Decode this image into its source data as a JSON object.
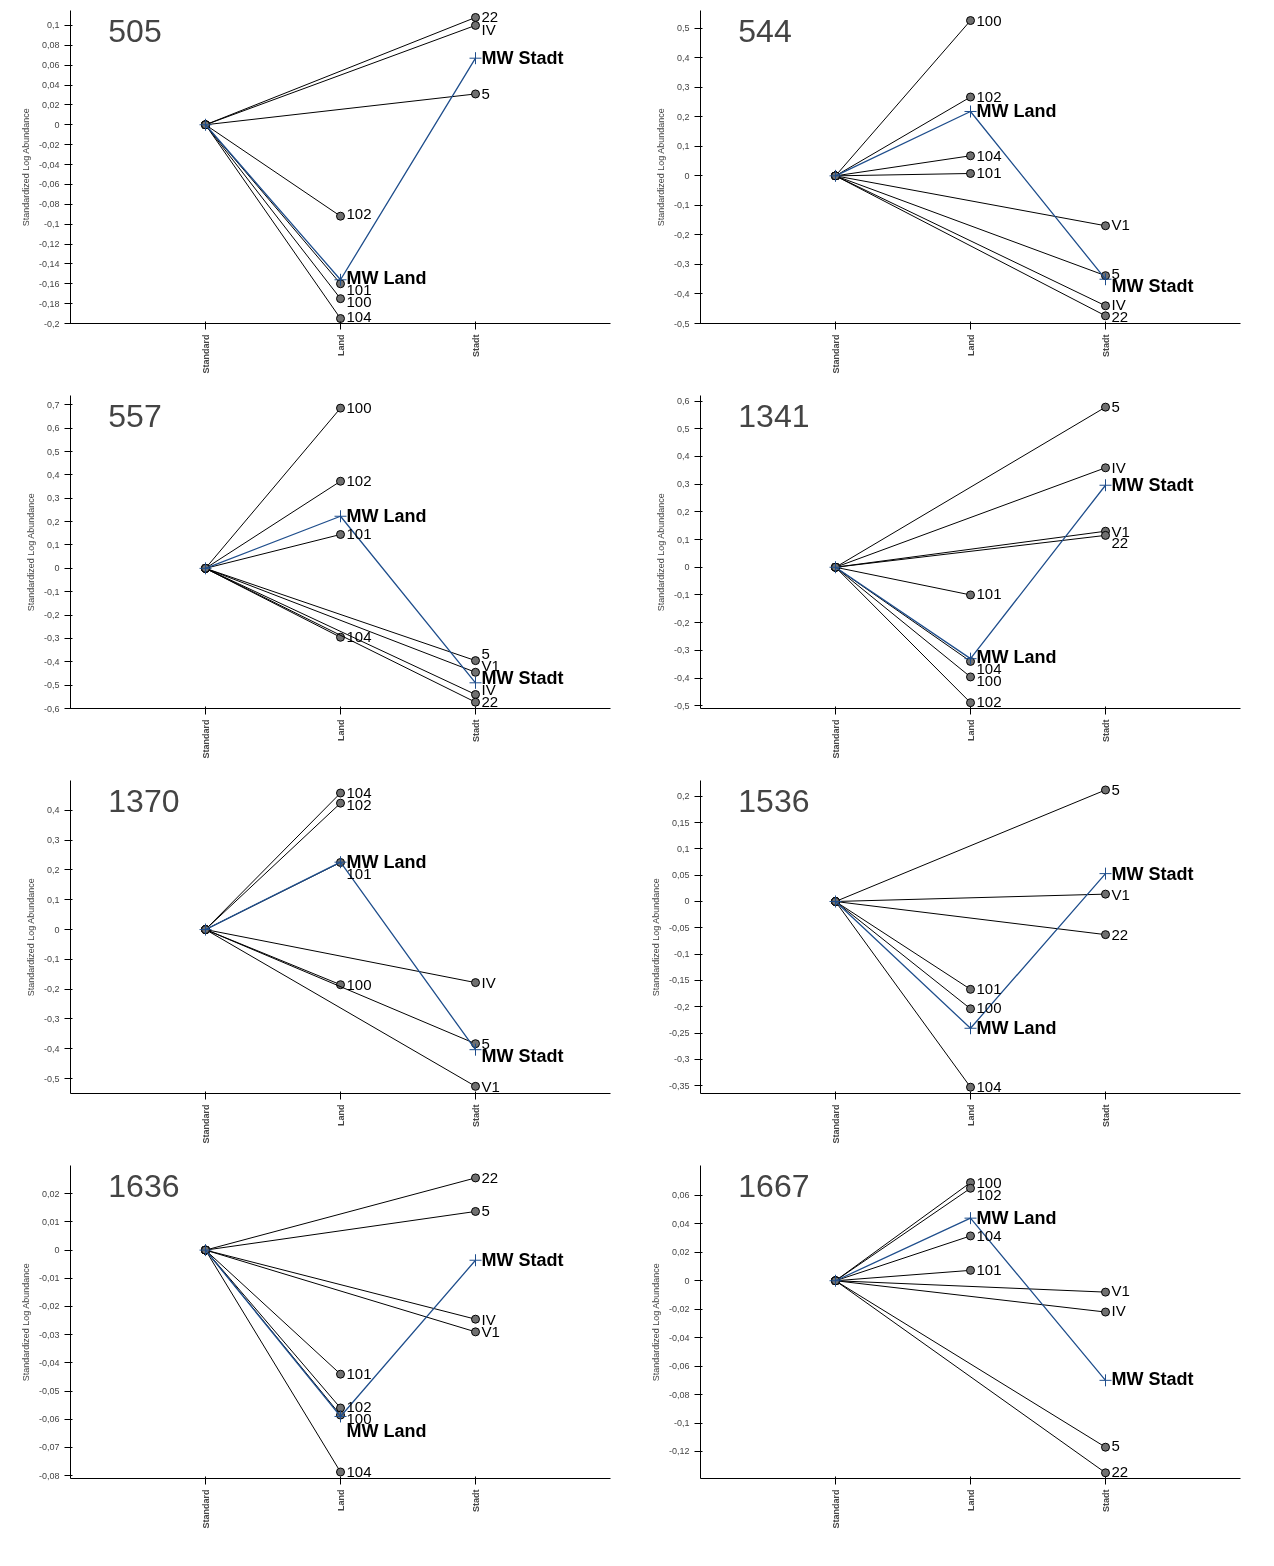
{
  "chart_data": [
    {
      "type": "line",
      "title": "505",
      "ylabel": "Standardized Log Abundance",
      "categories": [
        "Standard",
        "Land",
        "Stadt"
      ],
      "ylim": [
        -0.2,
        0.115
      ],
      "yticks": [
        {
          "value": -0.2,
          "label": "-0,2"
        },
        {
          "value": -0.18,
          "label": "-0,18"
        },
        {
          "value": -0.16,
          "label": "-0,16"
        },
        {
          "value": -0.14,
          "label": "-0,14"
        },
        {
          "value": -0.12,
          "label": "-0,12"
        },
        {
          "value": -0.1,
          "label": "-0,1"
        },
        {
          "value": -0.08,
          "label": "-0,08"
        },
        {
          "value": -0.06,
          "label": "-0,06"
        },
        {
          "value": -0.04,
          "label": "-0,04"
        },
        {
          "value": -0.02,
          "label": "-0,02"
        },
        {
          "value": 0,
          "label": "0"
        },
        {
          "value": 0.02,
          "label": "0,02"
        },
        {
          "value": 0.04,
          "label": "0,04"
        },
        {
          "value": 0.06,
          "label": "0,06"
        },
        {
          "value": 0.08,
          "label": "0,08"
        },
        {
          "value": 0.1,
          "label": "0,1"
        }
      ],
      "series": [
        {
          "name": "22",
          "color": "#000000",
          "marker": "circle",
          "values": [
            0,
            null,
            0.108
          ]
        },
        {
          "name": "IV",
          "color": "#000000",
          "marker": "circle",
          "values": [
            0,
            null,
            0.1
          ]
        },
        {
          "name": "5",
          "color": "#000000",
          "marker": "circle",
          "values": [
            0,
            null,
            0.031
          ]
        },
        {
          "name": "102",
          "color": "#000000",
          "marker": "circle",
          "values": [
            0,
            -0.092,
            null
          ]
        },
        {
          "name": "101",
          "color": "#000000",
          "marker": "circle",
          "values": [
            0,
            -0.16,
            null
          ]
        },
        {
          "name": "100",
          "color": "#000000",
          "marker": "circle",
          "values": [
            0,
            -0.175,
            null
          ]
        },
        {
          "name": "104",
          "color": "#000000",
          "marker": "circle",
          "values": [
            0,
            -0.195,
            null
          ]
        },
        {
          "color": "#1f4e8c",
          "marker": "cross",
          "values": [
            0,
            -0.156,
            0.067
          ]
        }
      ],
      "annotations": [
        {
          "text": "MW Land",
          "x": "Land",
          "y": -0.156
        },
        {
          "text": "MW Stadt",
          "x": "Stadt",
          "y": 0.067
        }
      ]
    },
    {
      "type": "line",
      "title": "544",
      "ylabel": "Standardized Log Abundance",
      "categories": [
        "Standard",
        "Land",
        "Stadt"
      ],
      "ylim": [
        -0.5,
        0.56
      ],
      "yticks": [
        {
          "value": -0.5,
          "label": "-0,5"
        },
        {
          "value": -0.4,
          "label": "-0,4"
        },
        {
          "value": -0.3,
          "label": "-0,3"
        },
        {
          "value": -0.2,
          "label": "-0,2"
        },
        {
          "value": -0.1,
          "label": "-0,1"
        },
        {
          "value": 0,
          "label": "0"
        },
        {
          "value": 0.1,
          "label": "0,1"
        },
        {
          "value": 0.2,
          "label": "0,2"
        },
        {
          "value": 0.3,
          "label": "0,3"
        },
        {
          "value": 0.4,
          "label": "0,4"
        },
        {
          "value": 0.5,
          "label": "0,5"
        }
      ],
      "series": [
        {
          "name": "100",
          "color": "#000000",
          "marker": "circle",
          "values": [
            0,
            0.526,
            null
          ]
        },
        {
          "name": "102",
          "color": "#000000",
          "marker": "circle",
          "values": [
            0,
            0.267,
            null
          ]
        },
        {
          "name": "104",
          "color": "#000000",
          "marker": "circle",
          "values": [
            0,
            0.068,
            null
          ]
        },
        {
          "name": "101",
          "color": "#000000",
          "marker": "circle",
          "values": [
            0,
            0.008,
            null
          ]
        },
        {
          "name": "V1",
          "color": "#000000",
          "marker": "circle",
          "values": [
            0,
            null,
            -0.169
          ]
        },
        {
          "name": "5",
          "color": "#000000",
          "marker": "circle",
          "values": [
            0,
            null,
            -0.338
          ]
        },
        {
          "name": "IV",
          "color": "#000000",
          "marker": "circle",
          "values": [
            0,
            null,
            -0.44
          ]
        },
        {
          "name": "22",
          "color": "#000000",
          "marker": "circle",
          "values": [
            0,
            null,
            -0.474
          ]
        },
        {
          "color": "#1f4e8c",
          "marker": "cross",
          "values": [
            0,
            0.218,
            -0.35
          ]
        }
      ],
      "annotations": [
        {
          "text": "MW Land",
          "x": "Land",
          "y": 0.218
        },
        {
          "text": "MW Stadt",
          "x": "Stadt",
          "y": -0.35
        }
      ]
    },
    {
      "type": "line",
      "title": "557",
      "ylabel": "Standardized Log Abundance",
      "categories": [
        "Standard",
        "Land",
        "Stadt"
      ],
      "ylim": [
        -0.6,
        0.74
      ],
      "yticks": [
        {
          "value": -0.6,
          "label": "-0,6"
        },
        {
          "value": -0.5,
          "label": "-0,5"
        },
        {
          "value": -0.4,
          "label": "-0,4"
        },
        {
          "value": -0.3,
          "label": "-0,3"
        },
        {
          "value": -0.2,
          "label": "-0,2"
        },
        {
          "value": -0.1,
          "label": "-0,1"
        },
        {
          "value": 0,
          "label": "0"
        },
        {
          "value": 0.1,
          "label": "0,1"
        },
        {
          "value": 0.2,
          "label": "0,2"
        },
        {
          "value": 0.3,
          "label": "0,3"
        },
        {
          "value": 0.4,
          "label": "0,4"
        },
        {
          "value": 0.5,
          "label": "0,5"
        },
        {
          "value": 0.6,
          "label": "0,6"
        },
        {
          "value": 0.7,
          "label": "0,7"
        }
      ],
      "series": [
        {
          "name": "100",
          "color": "#000000",
          "marker": "circle",
          "values": [
            0,
            0.686,
            null
          ]
        },
        {
          "name": "102",
          "color": "#000000",
          "marker": "circle",
          "values": [
            0,
            0.373,
            null
          ]
        },
        {
          "name": "101",
          "color": "#000000",
          "marker": "circle",
          "values": [
            0,
            0.145,
            null
          ]
        },
        {
          "name": "104",
          "color": "#000000",
          "marker": "circle",
          "values": [
            0,
            -0.295,
            null
          ]
        },
        {
          "name": "5",
          "color": "#000000",
          "marker": "circle",
          "values": [
            0,
            null,
            -0.395
          ]
        },
        {
          "name": "V1",
          "color": "#000000",
          "marker": "circle",
          "values": [
            0,
            null,
            -0.445
          ]
        },
        {
          "name": "IV",
          "color": "#000000",
          "marker": "circle",
          "values": [
            0,
            null,
            -0.54
          ]
        },
        {
          "name": "22",
          "color": "#000000",
          "marker": "circle",
          "values": [
            0,
            null,
            -0.573
          ]
        },
        {
          "color": "#1f4e8c",
          "marker": "cross",
          "values": [
            0,
            0.223,
            -0.49
          ]
        }
      ],
      "annotations": [
        {
          "text": "MW Land",
          "x": "Land",
          "y": 0.223
        },
        {
          "text": "MW Stadt",
          "x": "Stadt",
          "y": -0.49
        }
      ]
    },
    {
      "type": "line",
      "title": "1341",
      "ylabel": "Standardized Log Abundance",
      "categories": [
        "Standard",
        "Land",
        "Stadt"
      ],
      "ylim": [
        -0.51,
        0.62
      ],
      "yticks": [
        {
          "value": -0.5,
          "label": "-0,5"
        },
        {
          "value": -0.4,
          "label": "-0,4"
        },
        {
          "value": -0.3,
          "label": "-0,3"
        },
        {
          "value": -0.2,
          "label": "-0,2"
        },
        {
          "value": -0.1,
          "label": "-0,1"
        },
        {
          "value": 0,
          "label": "0"
        },
        {
          "value": 0.1,
          "label": "0,1"
        },
        {
          "value": 0.2,
          "label": "0,2"
        },
        {
          "value": 0.3,
          "label": "0,3"
        },
        {
          "value": 0.4,
          "label": "0,4"
        },
        {
          "value": 0.5,
          "label": "0,5"
        },
        {
          "value": 0.6,
          "label": "0,6"
        }
      ],
      "series": [
        {
          "name": "5",
          "color": "#000000",
          "marker": "circle",
          "values": [
            0,
            null,
            0.578
          ]
        },
        {
          "name": "IV",
          "color": "#000000",
          "marker": "circle",
          "values": [
            0,
            null,
            0.359
          ]
        },
        {
          "name": "V1",
          "color": "#000000",
          "marker": "circle",
          "values": [
            0,
            null,
            0.13
          ]
        },
        {
          "name": "22",
          "color": "#000000",
          "marker": "circle",
          "values": [
            0,
            null,
            0.115
          ]
        },
        {
          "name": "101",
          "color": "#000000",
          "marker": "circle",
          "values": [
            0,
            -0.1,
            null
          ]
        },
        {
          "name": "104",
          "color": "#000000",
          "marker": "circle",
          "values": [
            0,
            -0.34,
            null
          ]
        },
        {
          "name": "100",
          "color": "#000000",
          "marker": "circle",
          "values": [
            0,
            -0.396,
            null
          ]
        },
        {
          "name": "102",
          "color": "#000000",
          "marker": "circle",
          "values": [
            0,
            -0.489,
            null
          ]
        },
        {
          "color": "#1f4e8c",
          "marker": "cross",
          "values": [
            0,
            -0.33,
            0.296
          ]
        }
      ],
      "annotations": [
        {
          "text": "MW Land",
          "x": "Land",
          "y": -0.33
        },
        {
          "text": "MW Stadt",
          "x": "Stadt",
          "y": 0.296
        }
      ]
    },
    {
      "type": "line",
      "title": "1370",
      "ylabel": "Standardized Log Abundance",
      "categories": [
        "Standard",
        "Land",
        "Stadt"
      ],
      "ylim": [
        -0.55,
        0.5
      ],
      "yticks": [
        {
          "value": -0.5,
          "label": "-0,5"
        },
        {
          "value": -0.4,
          "label": "-0,4"
        },
        {
          "value": -0.3,
          "label": "-0,3"
        },
        {
          "value": -0.2,
          "label": "-0,2"
        },
        {
          "value": -0.1,
          "label": "-0,1"
        },
        {
          "value": 0,
          "label": "0"
        },
        {
          "value": 0.1,
          "label": "0,1"
        },
        {
          "value": 0.2,
          "label": "0,2"
        },
        {
          "value": 0.3,
          "label": "0,3"
        },
        {
          "value": 0.4,
          "label": "0,4"
        }
      ],
      "series": [
        {
          "name": "104",
          "color": "#000000",
          "marker": "circle",
          "values": [
            0,
            0.458,
            null
          ]
        },
        {
          "name": "102",
          "color": "#000000",
          "marker": "circle",
          "values": [
            0,
            0.424,
            null
          ]
        },
        {
          "name": "101",
          "color": "#000000",
          "marker": "circle",
          "values": [
            0,
            0.225,
            null
          ]
        },
        {
          "name": "100",
          "color": "#000000",
          "marker": "circle",
          "values": [
            0,
            -0.185,
            null
          ]
        },
        {
          "name": "IV",
          "color": "#000000",
          "marker": "circle",
          "values": [
            0,
            null,
            -0.178
          ]
        },
        {
          "name": "5",
          "color": "#000000",
          "marker": "circle",
          "values": [
            0,
            null,
            -0.383
          ]
        },
        {
          "name": "V1",
          "color": "#000000",
          "marker": "circle",
          "values": [
            0,
            null,
            -0.526
          ]
        },
        {
          "color": "#1f4e8c",
          "marker": "cross",
          "values": [
            0,
            0.226,
            -0.403
          ]
        }
      ],
      "annotations": [
        {
          "text": "MW Land",
          "x": "Land",
          "y": 0.226
        },
        {
          "text": "MW Stadt",
          "x": "Stadt",
          "y": -0.403
        }
      ]
    },
    {
      "type": "line",
      "title": "1536",
      "ylabel": "Standardized Log Abundance",
      "categories": [
        "Standard",
        "Land",
        "Stadt"
      ],
      "ylim": [
        -0.365,
        0.23
      ],
      "yticks": [
        {
          "value": -0.35,
          "label": "-0,35"
        },
        {
          "value": -0.3,
          "label": "-0,3"
        },
        {
          "value": -0.25,
          "label": "-0,25"
        },
        {
          "value": -0.2,
          "label": "-0,2"
        },
        {
          "value": -0.15,
          "label": "-0,15"
        },
        {
          "value": -0.1,
          "label": "-0,1"
        },
        {
          "value": -0.05,
          "label": "-0,05"
        },
        {
          "value": 0,
          "label": "0"
        },
        {
          "value": 0.05,
          "label": "0,05"
        },
        {
          "value": 0.1,
          "label": "0,1"
        },
        {
          "value": 0.15,
          "label": "0,15"
        },
        {
          "value": 0.2,
          "label": "0,2"
        }
      ],
      "series": [
        {
          "name": "5",
          "color": "#000000",
          "marker": "circle",
          "values": [
            0,
            null,
            0.212
          ]
        },
        {
          "name": "V1",
          "color": "#000000",
          "marker": "circle",
          "values": [
            0,
            null,
            0.014
          ]
        },
        {
          "name": "22",
          "color": "#000000",
          "marker": "circle",
          "values": [
            0,
            null,
            -0.063
          ]
        },
        {
          "name": "101",
          "color": "#000000",
          "marker": "circle",
          "values": [
            0,
            -0.167,
            null
          ]
        },
        {
          "name": "100",
          "color": "#000000",
          "marker": "circle",
          "values": [
            0,
            -0.204,
            null
          ]
        },
        {
          "name": "104",
          "color": "#000000",
          "marker": "circle",
          "values": [
            0,
            -0.353,
            null
          ]
        },
        {
          "color": "#1f4e8c",
          "marker": "cross",
          "values": [
            0,
            -0.241,
            0.053
          ]
        }
      ],
      "annotations": [
        {
          "text": "MW Land",
          "x": "Land",
          "y": -0.241
        },
        {
          "text": "MW Stadt",
          "x": "Stadt",
          "y": 0.053
        }
      ]
    },
    {
      "type": "line",
      "title": "1636",
      "ylabel": "Standardized Log Abundance",
      "categories": [
        "Standard",
        "Land",
        "Stadt"
      ],
      "ylim": [
        -0.081,
        0.03
      ],
      "yticks": [
        {
          "value": -0.08,
          "label": "-0,08"
        },
        {
          "value": -0.07,
          "label": "-0,07"
        },
        {
          "value": -0.06,
          "label": "-0,06"
        },
        {
          "value": -0.05,
          "label": "-0,05"
        },
        {
          "value": -0.04,
          "label": "-0,04"
        },
        {
          "value": -0.03,
          "label": "-0,03"
        },
        {
          "value": -0.02,
          "label": "-0,02"
        },
        {
          "value": -0.01,
          "label": "-0,01"
        },
        {
          "value": 0,
          "label": "0"
        },
        {
          "value": 0.01,
          "label": "0,01"
        },
        {
          "value": 0.02,
          "label": "0,02"
        }
      ],
      "series": [
        {
          "name": "22",
          "color": "#000000",
          "marker": "circle",
          "values": [
            0,
            null,
            0.0256
          ]
        },
        {
          "name": "5",
          "color": "#000000",
          "marker": "circle",
          "values": [
            0,
            null,
            0.0137
          ]
        },
        {
          "name": "IV",
          "color": "#000000",
          "marker": "circle",
          "values": [
            0,
            null,
            -0.0245
          ]
        },
        {
          "name": "V1",
          "color": "#000000",
          "marker": "circle",
          "values": [
            0,
            null,
            -0.029
          ]
        },
        {
          "name": "101",
          "color": "#000000",
          "marker": "circle",
          "values": [
            0,
            -0.044,
            null
          ]
        },
        {
          "name": "102",
          "color": "#000000",
          "marker": "circle",
          "values": [
            0,
            -0.056,
            null
          ]
        },
        {
          "name": "100",
          "color": "#000000",
          "marker": "circle",
          "values": [
            0,
            -0.0585,
            null
          ]
        },
        {
          "name": "104",
          "color": "#000000",
          "marker": "circle",
          "values": [
            0,
            -0.0787,
            null
          ]
        },
        {
          "color": "#1f4e8c",
          "marker": "cross",
          "values": [
            0,
            -0.059,
            -0.0036
          ]
        }
      ],
      "annotations": [
        {
          "text": "MW Land",
          "x": "Land",
          "y": -0.059
        },
        {
          "text": "MW Stadt",
          "x": "Stadt",
          "y": -0.0036
        }
      ]
    },
    {
      "type": "line",
      "title": "1667",
      "ylabel": "Standardized Log Abundance",
      "categories": [
        "Standard",
        "Land",
        "Stadt"
      ],
      "ylim": [
        -0.139,
        0.081
      ],
      "yticks": [
        {
          "value": -0.12,
          "label": "-0,12"
        },
        {
          "value": -0.1,
          "label": "-0,1"
        },
        {
          "value": -0.08,
          "label": "-0,08"
        },
        {
          "value": -0.06,
          "label": "-0,06"
        },
        {
          "value": -0.04,
          "label": "-0,04"
        },
        {
          "value": -0.02,
          "label": "-0,02"
        },
        {
          "value": 0,
          "label": "0"
        },
        {
          "value": 0.02,
          "label": "0,02"
        },
        {
          "value": 0.04,
          "label": "0,04"
        },
        {
          "value": 0.06,
          "label": "0,06"
        }
      ],
      "series": [
        {
          "name": "100",
          "color": "#000000",
          "marker": "circle",
          "values": [
            0,
            0.069,
            null
          ]
        },
        {
          "name": "102",
          "color": "#000000",
          "marker": "circle",
          "values": [
            0,
            0.065,
            null
          ]
        },
        {
          "name": "104",
          "color": "#000000",
          "marker": "circle",
          "values": [
            0,
            0.0315,
            null
          ]
        },
        {
          "name": "101",
          "color": "#000000",
          "marker": "circle",
          "values": [
            0,
            0.0073,
            null
          ]
        },
        {
          "name": "V1",
          "color": "#000000",
          "marker": "circle",
          "values": [
            0,
            null,
            -0.008
          ]
        },
        {
          "name": "IV",
          "color": "#000000",
          "marker": "circle",
          "values": [
            0,
            null,
            -0.022
          ]
        },
        {
          "name": "5",
          "color": "#000000",
          "marker": "circle",
          "values": [
            0,
            null,
            -0.117
          ]
        },
        {
          "name": "22",
          "color": "#000000",
          "marker": "circle",
          "values": [
            0,
            null,
            -0.135
          ]
        },
        {
          "color": "#1f4e8c",
          "marker": "cross",
          "values": [
            0,
            0.044,
            -0.07
          ]
        }
      ],
      "annotations": [
        {
          "text": "MW Land",
          "x": "Land",
          "y": 0.044
        },
        {
          "text": "MW Stadt",
          "x": "Stadt",
          "y": -0.07
        }
      ]
    }
  ]
}
